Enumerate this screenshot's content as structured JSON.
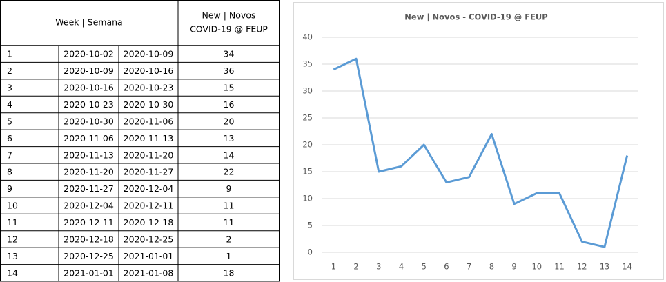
{
  "table": {
    "header": [
      "Week | Semana",
      [
        "New | Novos",
        "COVID-19 @ FEUP"
      ]
    ],
    "rows": [
      [
        1,
        "2020-10-02",
        "2020-10-09",
        34
      ],
      [
        2,
        "2020-10-09",
        "2020-10-16",
        36
      ],
      [
        3,
        "2020-10-16",
        "2020-10-23",
        15
      ],
      [
        4,
        "2020-10-23",
        "2020-10-30",
        16
      ],
      [
        5,
        "2020-10-30",
        "2020-11-06",
        20
      ],
      [
        6,
        "2020-11-06",
        "2020-11-13",
        13
      ],
      [
        7,
        "2020-11-13",
        "2020-11-20",
        14
      ],
      [
        8,
        "2020-11-20",
        "2020-11-27",
        22
      ],
      [
        9,
        "2020-11-27",
        "2020-12-04",
        9
      ],
      [
        10,
        "2020-12-04",
        "2020-12-11",
        11
      ],
      [
        11,
        "2020-12-11",
        "2020-12-18",
        11
      ],
      [
        12,
        "2020-12-18",
        "2020-12-25",
        2
      ],
      [
        13,
        "2020-12-25",
        "2021-01-01",
        1
      ],
      [
        14,
        "2021-01-01",
        "2021-01-08",
        18
      ]
    ]
  },
  "chart_data": {
    "type": "line",
    "title": "New | Novos - COVID-19 @ FEUP",
    "categories": [
      1,
      2,
      3,
      4,
      5,
      6,
      7,
      8,
      9,
      10,
      11,
      12,
      13,
      14
    ],
    "series": [
      {
        "name": "New | Novos",
        "color": "#5b9bd5",
        "values": [
          34,
          36,
          15,
          16,
          20,
          13,
          14,
          22,
          9,
          11,
          11,
          2,
          1,
          18
        ]
      }
    ],
    "ylim": [
      0,
      40
    ],
    "yticks": [
      0,
      5,
      10,
      15,
      20,
      25,
      30,
      35,
      40
    ],
    "grid": true
  }
}
